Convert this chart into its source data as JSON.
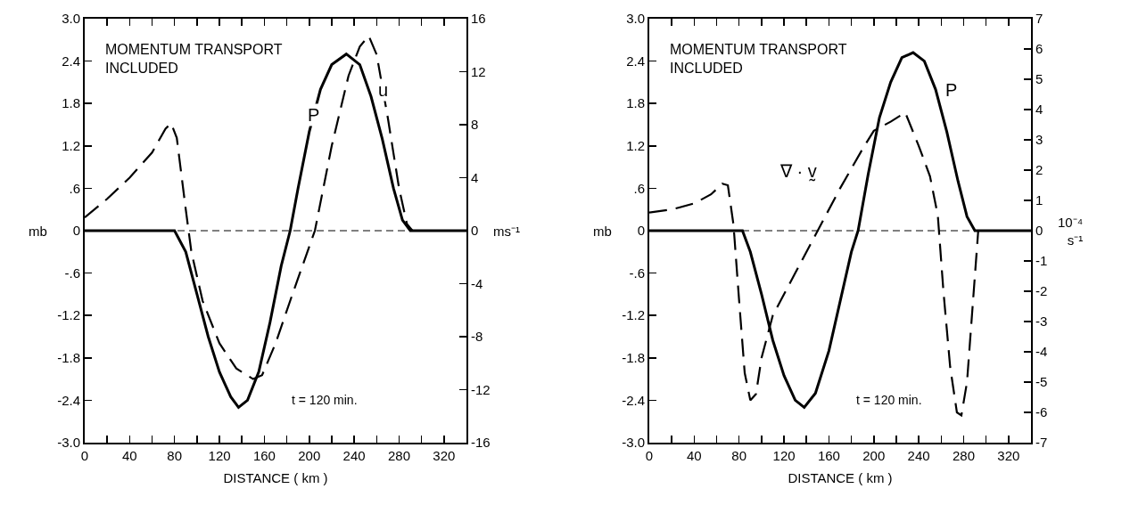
{
  "chart_data": [
    {
      "type": "line",
      "xlabel": "DISTANCE ( km )",
      "ylabel": "mb",
      "y2label": "ms⁻¹",
      "xlim": [
        0,
        340
      ],
      "xticks": [
        0,
        {
          "value": 20,
          "label": null
        },
        40,
        {
          "value": 60,
          "label": null
        },
        80,
        {
          "value": 100,
          "label": null
        },
        120,
        {
          "value": 140,
          "label": null
        },
        160,
        {
          "value": 180,
          "label": null
        },
        200,
        {
          "value": 220,
          "label": null
        },
        240,
        {
          "value": 260,
          "label": null
        },
        280,
        {
          "value": 300,
          "label": null
        },
        320,
        {
          "value": 340,
          "label": null
        }
      ],
      "ylim": [
        -3,
        3
      ],
      "yticks": [
        {
          "value": -3,
          "label": "-3.0"
        },
        -2.4,
        -1.8,
        -1.2,
        {
          "value": -0.6,
          "label": "-.6"
        },
        0,
        {
          "value": 0.6,
          "label": ".6"
        },
        1.2,
        1.8,
        2.4,
        {
          "value": 3,
          "label": "3.0"
        }
      ],
      "y2lim": [
        -16,
        16
      ],
      "y2ticks": [
        -16,
        -12,
        -8,
        -4,
        0,
        4,
        8,
        12,
        16
      ],
      "series": [
        {
          "name": "P",
          "color": "#000000",
          "line_style": "solid",
          "x": [
            0,
            80,
            90,
            100,
            110,
            120,
            130,
            137,
            145,
            155,
            165,
            175,
            183,
            190,
            200,
            210,
            220,
            233,
            245,
            255,
            265,
            275,
            283,
            290,
            340
          ],
          "values": [
            0,
            0,
            -0.3,
            -0.9,
            -1.5,
            -2.0,
            -2.35,
            -2.5,
            -2.4,
            -2.0,
            -1.3,
            -0.5,
            0,
            0.6,
            1.4,
            2.0,
            2.35,
            2.5,
            2.35,
            1.9,
            1.3,
            0.6,
            0.15,
            0,
            0
          ]
        },
        {
          "name": "u",
          "color": "#000000",
          "line_style": "dashed",
          "axis": "y2",
          "x": [
            0,
            20,
            40,
            60,
            72,
            77,
            82,
            90,
            95,
            105,
            120,
            135,
            150,
            158,
            170,
            185,
            205,
            220,
            235,
            245,
            253,
            260,
            270,
            280,
            287,
            292
          ],
          "values": [
            1,
            2.4,
            4,
            5.9,
            7.7,
            8.1,
            7,
            1.6,
            -1.6,
            -5.3,
            -8.5,
            -10.4,
            -11.2,
            -10.9,
            -8.5,
            -4.8,
            0,
            6.4,
            11.7,
            13.9,
            14.7,
            13.3,
            8.5,
            3.2,
            0.5,
            0
          ]
        }
      ],
      "ref_lines": [
        {
          "axis": "y",
          "value": 0,
          "line_style": "dashed",
          "color": "#000000"
        }
      ],
      "annotations": [
        "MOMENTUM TRANSPORT\nINCLUDED",
        "t = 120 min."
      ]
    },
    {
      "type": "line",
      "xlabel": "DISTANCE ( km )",
      "ylabel": "mb",
      "y2label": "10⁻⁴\ns⁻¹",
      "xlim": [
        0,
        340
      ],
      "xticks": [
        0,
        {
          "value": 20,
          "label": null
        },
        40,
        {
          "value": 60,
          "label": null
        },
        80,
        {
          "value": 100,
          "label": null
        },
        120,
        {
          "value": 140,
          "label": null
        },
        160,
        {
          "value": 180,
          "label": null
        },
        200,
        {
          "value": 220,
          "label": null
        },
        240,
        {
          "value": 260,
          "label": null
        },
        280,
        {
          "value": 300,
          "label": null
        },
        320,
        {
          "value": 340,
          "label": null
        }
      ],
      "ylim": [
        -3,
        3
      ],
      "yticks": [
        {
          "value": -3,
          "label": "-3.0"
        },
        -2.4,
        -1.8,
        -1.2,
        {
          "value": -0.6,
          "label": "-.6"
        },
        0,
        {
          "value": 0.6,
          "label": ".6"
        },
        1.2,
        1.8,
        2.4,
        {
          "value": 3,
          "label": "3.0"
        }
      ],
      "y2lim": [
        -7,
        7
      ],
      "y2ticks": [
        -7,
        -6,
        -5,
        -4,
        -3,
        -2,
        -1,
        0,
        1,
        2,
        3,
        4,
        5,
        6,
        7
      ],
      "series": [
        {
          "name": "P",
          "color": "#000000",
          "line_style": "solid",
          "x": [
            0,
            83,
            90,
            100,
            110,
            120,
            130,
            138,
            148,
            160,
            170,
            180,
            186,
            195,
            205,
            215,
            225,
            235,
            245,
            255,
            265,
            275,
            283,
            290,
            340
          ],
          "values": [
            0,
            0,
            -0.3,
            -0.9,
            -1.55,
            -2.05,
            -2.4,
            -2.5,
            -2.3,
            -1.7,
            -1.0,
            -0.3,
            0,
            0.8,
            1.6,
            2.1,
            2.45,
            2.52,
            2.4,
            2.0,
            1.4,
            0.7,
            0.2,
            0,
            0
          ]
        },
        {
          "name": "∇ · v̰",
          "color": "#000000",
          "line_style": "dashed",
          "axis": "y2",
          "x": [
            0,
            20,
            40,
            55,
            65,
            70,
            75,
            80,
            85,
            90,
            95,
            100,
            110,
            130,
            150,
            170,
            190,
            200,
            215,
            228,
            240,
            250,
            257,
            262,
            268,
            274,
            278,
            283,
            288,
            293
          ],
          "values": [
            0.6,
            0.7,
            0.9,
            1.2,
            1.55,
            1.5,
            0.2,
            -2.3,
            -4.7,
            -5.6,
            -5.4,
            -4.2,
            -2.8,
            -1.4,
            0,
            1.4,
            2.7,
            3.3,
            3.6,
            3.9,
            2.8,
            1.8,
            0.5,
            -2.0,
            -4.5,
            -6.0,
            -6.1,
            -5.0,
            -2.5,
            0
          ]
        }
      ],
      "ref_lines": [
        {
          "axis": "y",
          "value": 0,
          "line_style": "dashed",
          "color": "#000000"
        }
      ],
      "annotations": [
        "MOMENTUM TRANSPORT\nINCLUDED",
        "t = 120 min."
      ]
    }
  ]
}
